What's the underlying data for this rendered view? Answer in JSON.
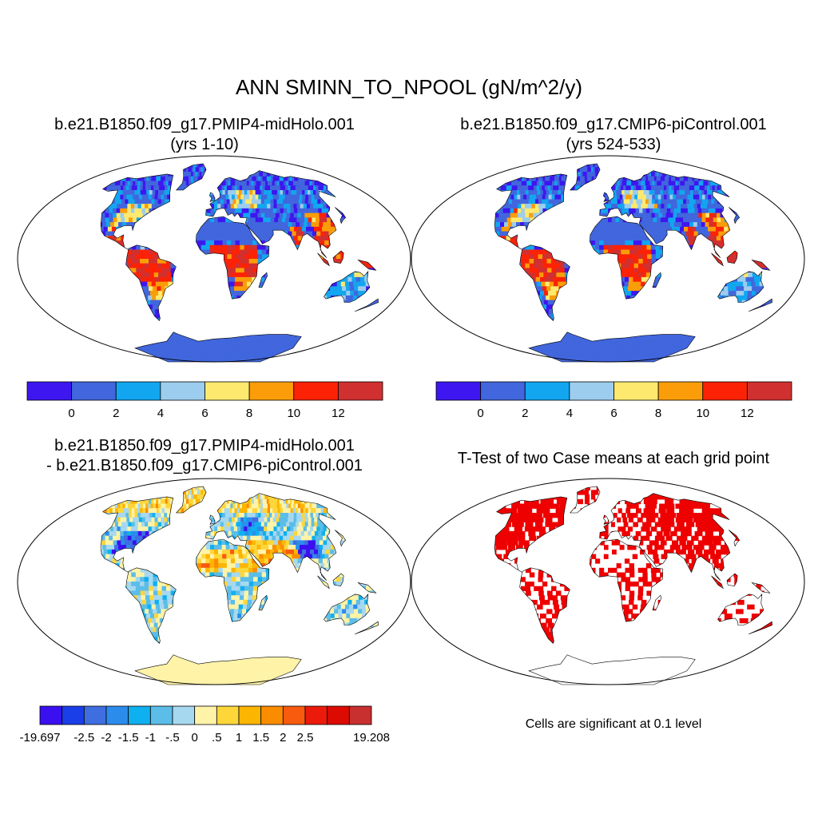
{
  "title": "ANN SMINN_TO_NPOOL (gN/m^2/y)",
  "panels": {
    "top_left": {
      "case": "b.e21.B1850.f09_g17.PMIP4-midHolo.001",
      "years": "(yrs 1-10)"
    },
    "top_right": {
      "case": "b.e21.B1850.f09_g17.CMIP6-piControl.001",
      "years": "(yrs 524-533)"
    },
    "bottom_left": {
      "line1": "b.e21.B1850.f09_g17.PMIP4-midHolo.001",
      "line2": "- b.e21.B1850.f09_g17.CMIP6-piControl.001"
    },
    "bottom_right": {
      "title": "T-Test of two Case means at each grid point",
      "note": "Cells are significant at 0.1 level",
      "significance_color": "#ee0000"
    }
  },
  "colorbar_abs": {
    "colors": [
      "#3d16f0",
      "#4166dd",
      "#12a6f0",
      "#9ccdee",
      "#fde96e",
      "#fb9d08",
      "#fb2206",
      "#d13030"
    ],
    "labels": [
      "0",
      "2",
      "4",
      "6",
      "8",
      "10",
      "12"
    ]
  },
  "colorbar_diff": {
    "colors": [
      "#3a10f0",
      "#1a3ee8",
      "#3f6ee0",
      "#2b8cec",
      "#0fb0f0",
      "#5bbde8",
      "#a6d8f0",
      "#fff3a8",
      "#fdd63a",
      "#fcb500",
      "#fb8c00",
      "#f85a0e",
      "#ec1a0a",
      "#dc0a00",
      "#c83030"
    ],
    "labels": [
      "-19.697",
      "-2.5",
      "-2",
      "-1.5",
      "-1",
      "-.5",
      "0",
      ".5",
      "1",
      "1.5",
      "2",
      "2.5",
      "19.208"
    ]
  }
}
